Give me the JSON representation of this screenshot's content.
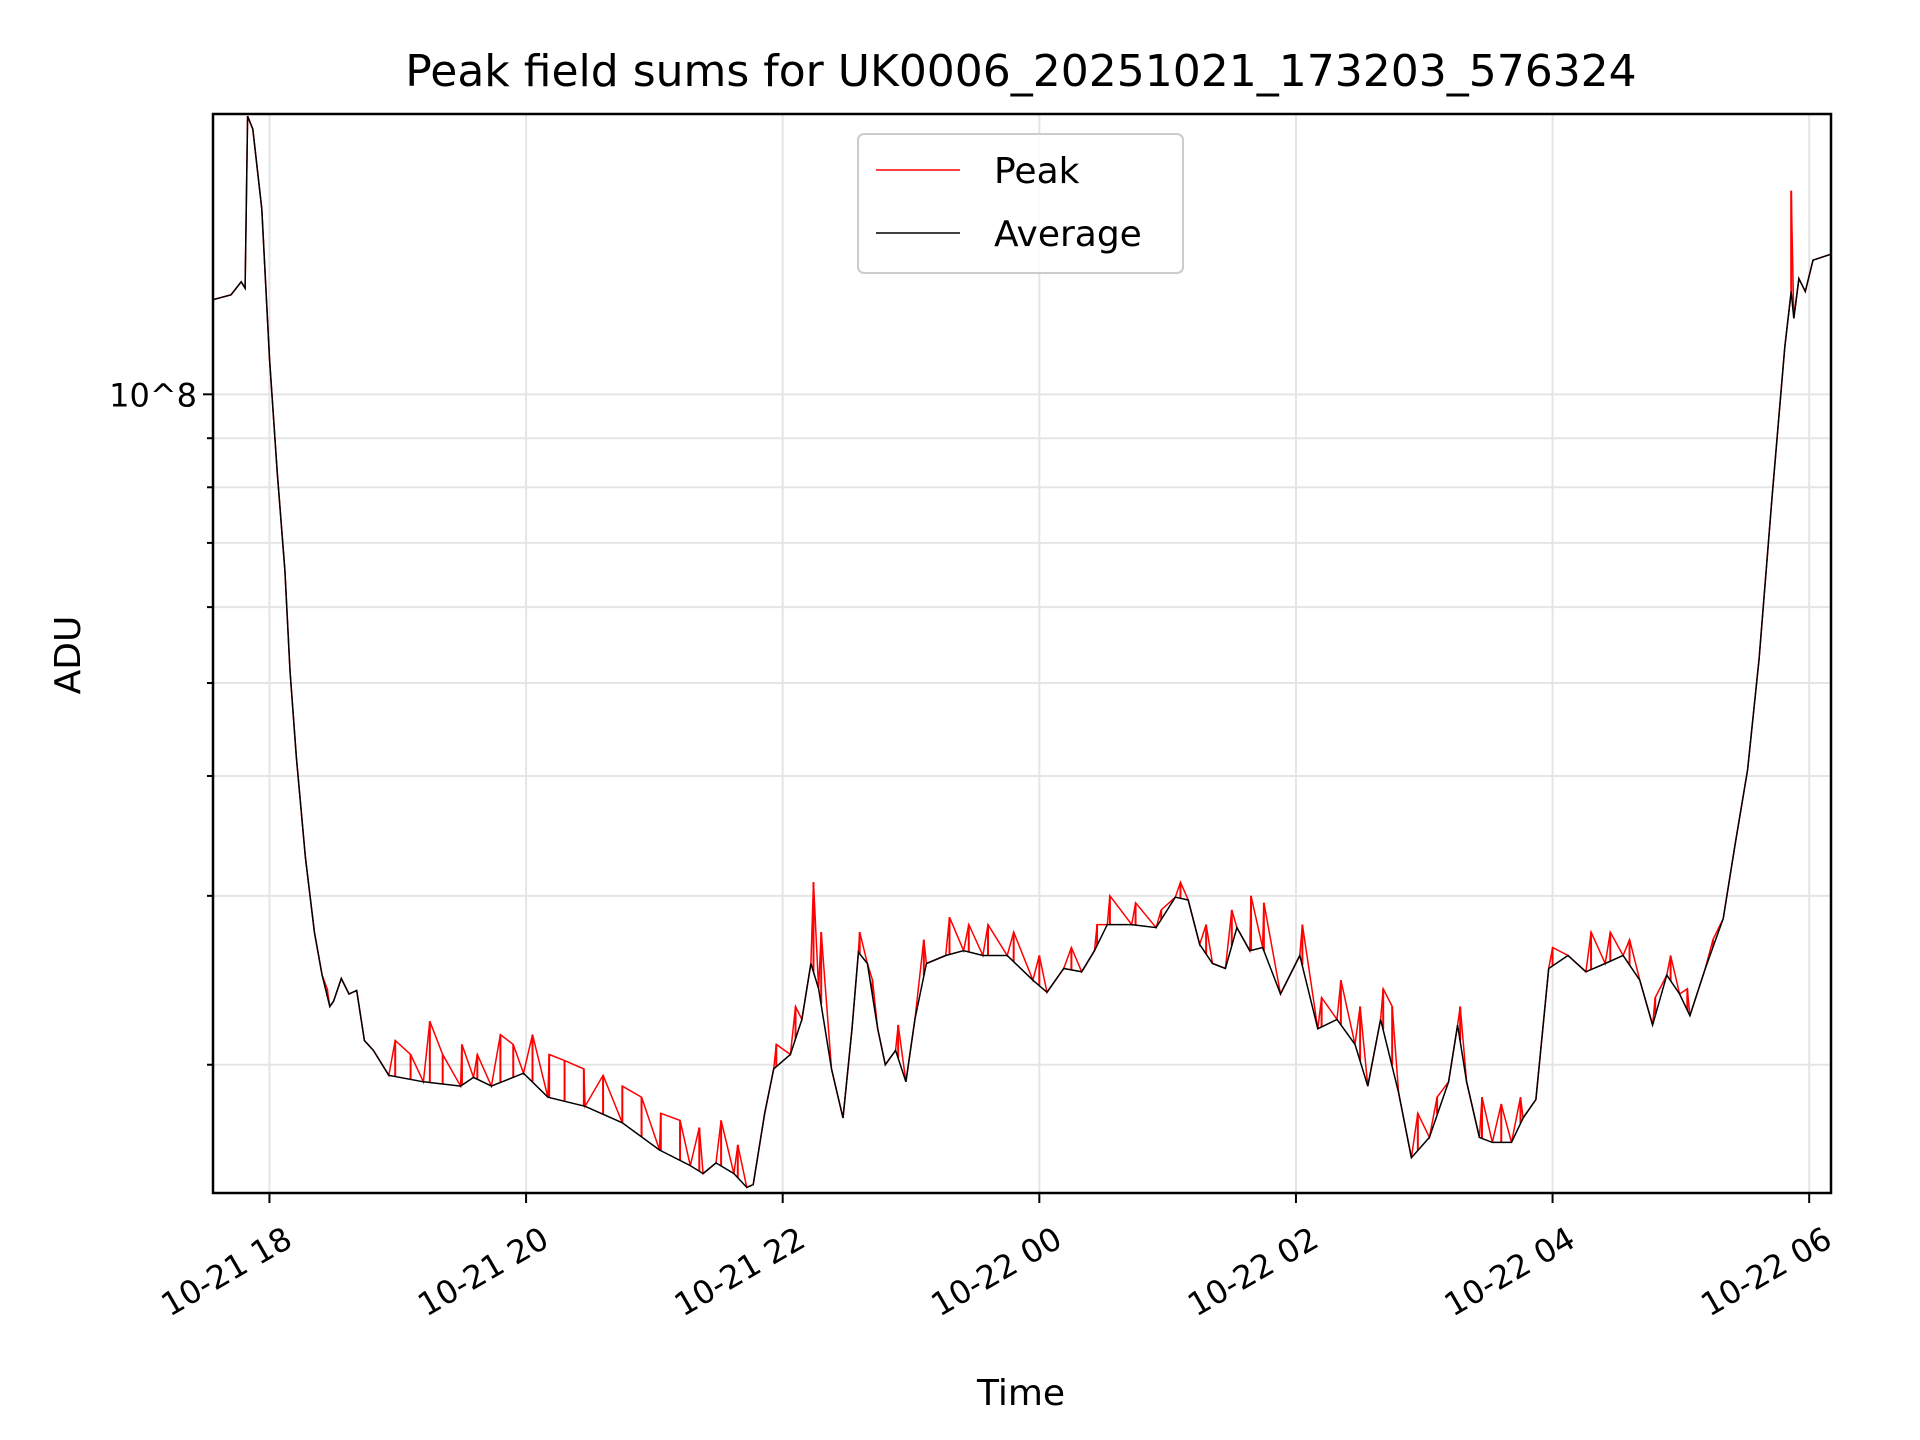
{
  "chart_data": {
    "type": "line",
    "title": "Peak field sums for UK0006_20251021_173203_576324",
    "xlabel": "Time",
    "ylabel": "ADU",
    "yscale": "log",
    "x_units": "hours since 10-21 00:00",
    "xlim": [
      17.56,
      30.17
    ],
    "ylim": [
      14700000.0,
      196000000.0
    ],
    "grid": true,
    "legend": {
      "placement": "upper-center",
      "entries": [
        "Peak",
        "Average"
      ]
    },
    "colors": {
      "Peak": "#ff0000",
      "Average": "#000000"
    },
    "xticks": [
      {
        "value": 18,
        "label": "10-21 18"
      },
      {
        "value": 20,
        "label": "10-21 20"
      },
      {
        "value": 22,
        "label": "10-21 22"
      },
      {
        "value": 24,
        "label": "10-22 00"
      },
      {
        "value": 26,
        "label": "10-22 02"
      },
      {
        "value": 28,
        "label": "10-22 04"
      },
      {
        "value": 30,
        "label": "10-22 06"
      }
    ],
    "yticks_major": [
      {
        "value": 100000000.0,
        "label": "10^8"
      }
    ],
    "yticks_minor": [
      20000000.0,
      30000000.0,
      40000000.0,
      50000000.0,
      60000000.0,
      70000000.0,
      80000000.0,
      90000000.0
    ],
    "series": [
      {
        "name": "Average",
        "points": [
          [
            17.56,
            125500000.0
          ],
          [
            17.7,
            127000000.0
          ],
          [
            17.78,
            131000000.0
          ],
          [
            17.81,
            129000000.0
          ],
          [
            17.83,
            195000000.0
          ],
          [
            17.87,
            189000000.0
          ],
          [
            17.94,
            156000000.0
          ],
          [
            18.0,
            109000000.0
          ],
          [
            18.06,
            83000000.0
          ],
          [
            18.12,
            65500000.0
          ],
          [
            18.16,
            51500000.0
          ],
          [
            18.21,
            41800000.0
          ],
          [
            18.28,
            32900000.0
          ],
          [
            18.35,
            27500000.0
          ],
          [
            18.41,
            24800000.0
          ],
          [
            18.47,
            23000000.0
          ],
          [
            18.5,
            23300000.0
          ],
          [
            18.56,
            24600000.0
          ],
          [
            18.62,
            23700000.0
          ],
          [
            18.68,
            23900000.0
          ],
          [
            18.74,
            21200000.0
          ],
          [
            18.81,
            20700000.0
          ],
          [
            18.93,
            19500000.0
          ],
          [
            19.2,
            19200000.0
          ],
          [
            19.49,
            19000000.0
          ],
          [
            19.59,
            19400000.0
          ],
          [
            19.73,
            19000000.0
          ],
          [
            19.98,
            19600000.0
          ],
          [
            20.17,
            18500000.0
          ],
          [
            20.46,
            18100000.0
          ],
          [
            20.75,
            17400000.0
          ],
          [
            21.04,
            16300000.0
          ],
          [
            21.28,
            15700000.0
          ],
          [
            21.38,
            15400000.0
          ],
          [
            21.48,
            15800000.0
          ],
          [
            21.62,
            15400000.0
          ],
          [
            21.72,
            14900000.0
          ],
          [
            21.77,
            15000000.0
          ],
          [
            21.86,
            17800000.0
          ],
          [
            21.93,
            19800000.0
          ],
          [
            22.06,
            20500000.0
          ],
          [
            22.15,
            22300000.0
          ],
          [
            22.22,
            25500000.0
          ],
          [
            22.28,
            24000000.0
          ],
          [
            22.38,
            19800000.0
          ],
          [
            22.47,
            17600000.0
          ],
          [
            22.54,
            21800000.0
          ],
          [
            22.59,
            26200000.0
          ],
          [
            22.66,
            25500000.0
          ],
          [
            22.74,
            21800000.0
          ],
          [
            22.8,
            20000000.0
          ],
          [
            22.88,
            20700000.0
          ],
          [
            22.96,
            19200000.0
          ],
          [
            23.03,
            22300000.0
          ],
          [
            23.12,
            25500000.0
          ],
          [
            23.27,
            26000000.0
          ],
          [
            23.41,
            26300000.0
          ],
          [
            23.56,
            26000000.0
          ],
          [
            23.75,
            26000000.0
          ],
          [
            23.95,
            24500000.0
          ],
          [
            24.06,
            23800000.0
          ],
          [
            24.19,
            25200000.0
          ],
          [
            24.33,
            25000000.0
          ],
          [
            24.43,
            26300000.0
          ],
          [
            24.53,
            28000000.0
          ],
          [
            24.72,
            28000000.0
          ],
          [
            24.91,
            27800000.0
          ],
          [
            25.06,
            29900000.0
          ],
          [
            25.16,
            29700000.0
          ],
          [
            25.25,
            26700000.0
          ],
          [
            25.35,
            25500000.0
          ],
          [
            25.45,
            25200000.0
          ],
          [
            25.54,
            27800000.0
          ],
          [
            25.64,
            26300000.0
          ],
          [
            25.74,
            26500000.0
          ],
          [
            25.88,
            23700000.0
          ],
          [
            26.03,
            26000000.0
          ],
          [
            26.17,
            21800000.0
          ],
          [
            26.32,
            22300000.0
          ],
          [
            26.46,
            21000000.0
          ],
          [
            26.56,
            19000000.0
          ],
          [
            26.66,
            22300000.0
          ],
          [
            26.8,
            18700000.0
          ],
          [
            26.9,
            16000000.0
          ],
          [
            27.04,
            16800000.0
          ],
          [
            27.19,
            19200000.0
          ],
          [
            27.26,
            22000000.0
          ],
          [
            27.33,
            19200000.0
          ],
          [
            27.43,
            16800000.0
          ],
          [
            27.53,
            16600000.0
          ],
          [
            27.68,
            16600000.0
          ],
          [
            27.77,
            17600000.0
          ],
          [
            27.87,
            18400000.0
          ],
          [
            27.97,
            25200000.0
          ],
          [
            28.12,
            26000000.0
          ],
          [
            28.26,
            25000000.0
          ],
          [
            28.41,
            25500000.0
          ],
          [
            28.55,
            26000000.0
          ],
          [
            28.68,
            24500000.0
          ],
          [
            28.78,
            22000000.0
          ],
          [
            28.89,
            24800000.0
          ],
          [
            28.99,
            23700000.0
          ],
          [
            29.07,
            22500000.0
          ],
          [
            29.19,
            25200000.0
          ],
          [
            29.33,
            28400000.0
          ],
          [
            29.42,
            33800000.0
          ],
          [
            29.52,
            40600000.0
          ],
          [
            29.61,
            53000000.0
          ],
          [
            29.71,
            78000000.0
          ],
          [
            29.81,
            112000000.0
          ],
          [
            29.86,
            128000000.0
          ],
          [
            29.88,
            120000000.0
          ],
          [
            29.92,
            132000000.0
          ],
          [
            29.97,
            128000000.0
          ],
          [
            30.03,
            138000000.0
          ],
          [
            30.17,
            140000000.0
          ]
        ]
      },
      {
        "name": "Peak",
        "points": [
          [
            18.45,
            24000000.0
          ],
          [
            18.98,
            21200000.0
          ],
          [
            19.1,
            20500000.0
          ],
          [
            19.25,
            22200000.0
          ],
          [
            19.35,
            20500000.0
          ],
          [
            19.5,
            21000000.0
          ],
          [
            19.62,
            20500000.0
          ],
          [
            19.8,
            21500000.0
          ],
          [
            19.9,
            21000000.0
          ],
          [
            20.05,
            21500000.0
          ],
          [
            20.18,
            20500000.0
          ],
          [
            20.3,
            20200000.0
          ],
          [
            20.45,
            19800000.0
          ],
          [
            20.6,
            19500000.0
          ],
          [
            20.75,
            19000000.0
          ],
          [
            20.9,
            18500000.0
          ],
          [
            21.05,
            17800000.0
          ],
          [
            21.2,
            17500000.0
          ],
          [
            21.35,
            17200000.0
          ],
          [
            21.52,
            17500000.0
          ],
          [
            21.65,
            16500000.0
          ],
          [
            21.95,
            21000000.0
          ],
          [
            22.1,
            23000000.0
          ],
          [
            22.24,
            31000000.0
          ],
          [
            22.3,
            27500000.0
          ],
          [
            22.6,
            27500000.0
          ],
          [
            22.7,
            24500000.0
          ],
          [
            22.9,
            22000000.0
          ],
          [
            23.1,
            27000000.0
          ],
          [
            23.3,
            28500000.0
          ],
          [
            23.45,
            28000000.0
          ],
          [
            23.6,
            28000000.0
          ],
          [
            23.8,
            27500000.0
          ],
          [
            24.0,
            26000000.0
          ],
          [
            24.25,
            26500000.0
          ],
          [
            24.45,
            28000000.0
          ],
          [
            24.55,
            30000000.0
          ],
          [
            24.75,
            29500000.0
          ],
          [
            24.95,
            29000000.0
          ],
          [
            25.1,
            31000000.0
          ],
          [
            25.3,
            28000000.0
          ],
          [
            25.5,
            29000000.0
          ],
          [
            25.65,
            30000000.0
          ],
          [
            25.75,
            29500000.0
          ],
          [
            26.05,
            28000000.0
          ],
          [
            26.2,
            23500000.0
          ],
          [
            26.35,
            24500000.0
          ],
          [
            26.5,
            23000000.0
          ],
          [
            26.68,
            24000000.0
          ],
          [
            26.75,
            23000000.0
          ],
          [
            26.95,
            17800000.0
          ],
          [
            27.1,
            18500000.0
          ],
          [
            27.28,
            23000000.0
          ],
          [
            27.45,
            18500000.0
          ],
          [
            27.6,
            18200000.0
          ],
          [
            27.75,
            18500000.0
          ],
          [
            28.0,
            26500000.0
          ],
          [
            28.3,
            27500000.0
          ],
          [
            28.45,
            27500000.0
          ],
          [
            28.6,
            27000000.0
          ],
          [
            28.8,
            23500000.0
          ],
          [
            28.92,
            26000000.0
          ],
          [
            29.05,
            24000000.0
          ],
          [
            29.25,
            27000000.0
          ],
          [
            29.86,
            163000000.0
          ]
        ]
      }
    ]
  }
}
